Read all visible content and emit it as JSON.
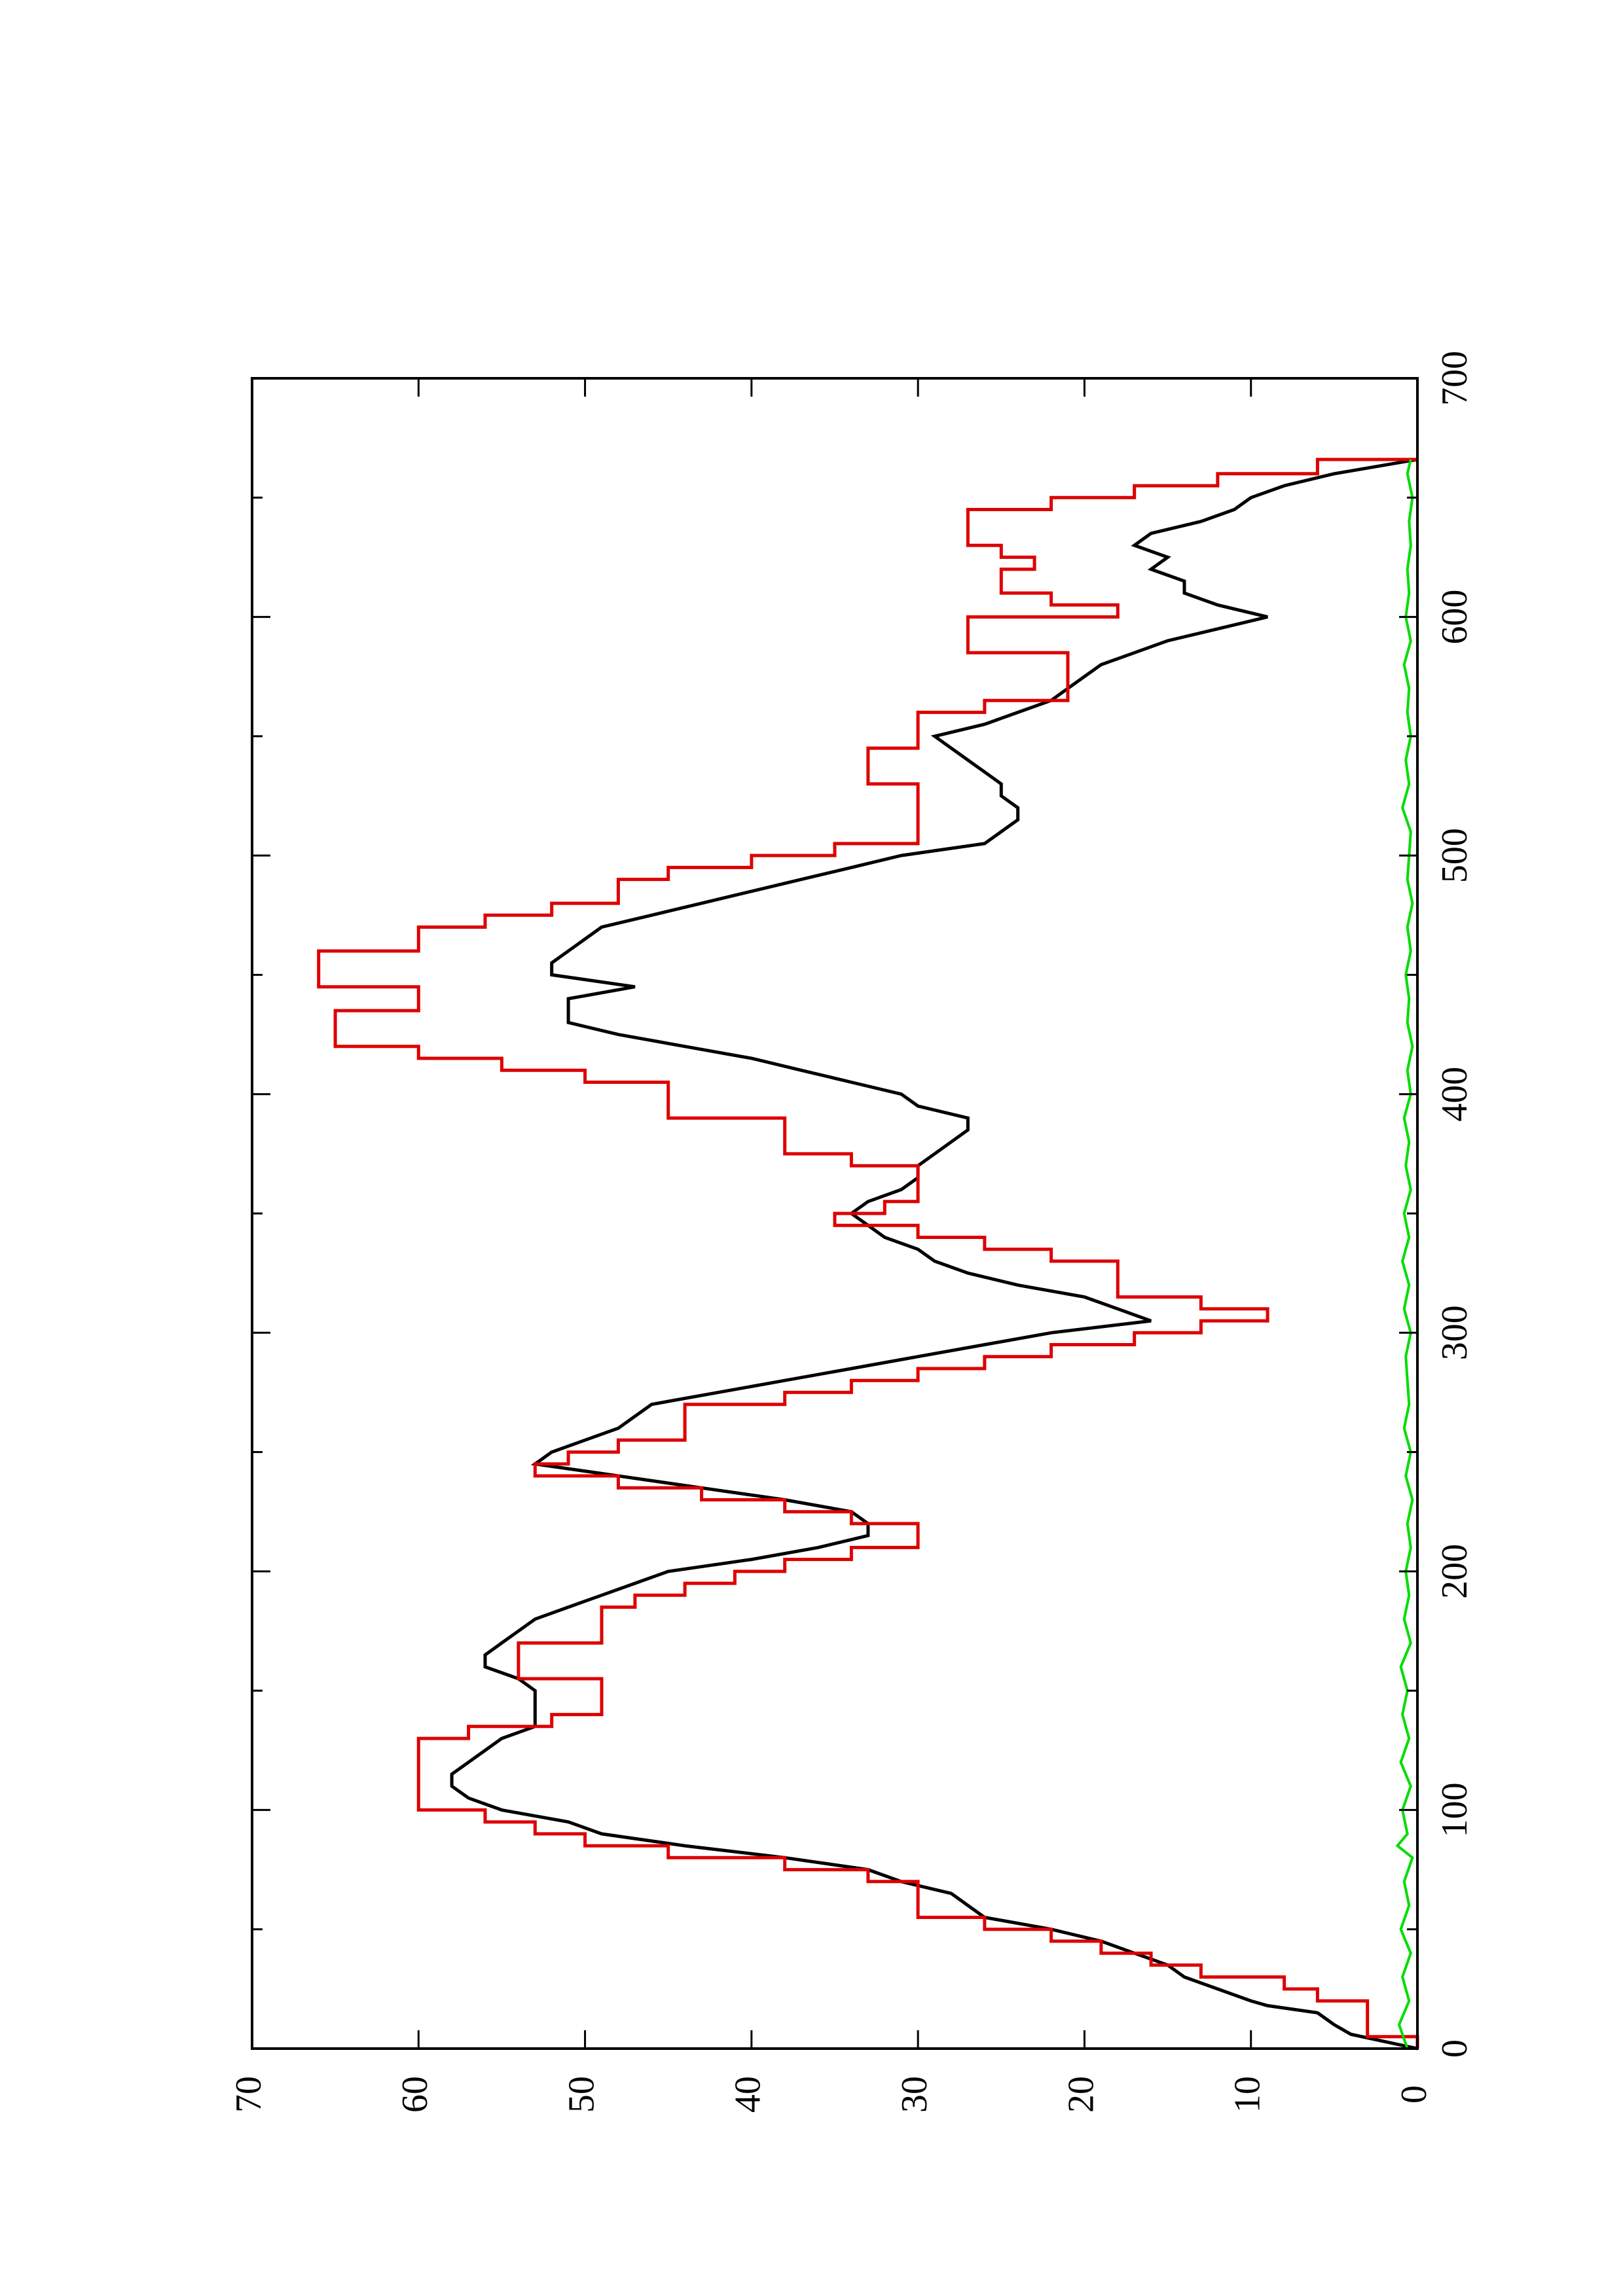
{
  "chart_data": {
    "type": "line",
    "title": "",
    "xlabel": "",
    "ylabel": "",
    "xlim": [
      0,
      700
    ],
    "ylim": [
      0,
      70
    ],
    "x_ticks": [
      0,
      100,
      200,
      300,
      400,
      500,
      600,
      700
    ],
    "x_minor_ticks": [
      50,
      150,
      250,
      350,
      450,
      550,
      650
    ],
    "y_ticks": [
      0,
      10,
      20,
      30,
      40,
      50,
      60,
      70
    ],
    "grid": false,
    "legend": "none",
    "orientation": "rotated 90 degrees counter-clockwise",
    "colors": {
      "black_series": "#000000",
      "red_series": "#dd0000",
      "green_series": "#00dd00"
    },
    "series": [
      {
        "color": "#000000",
        "style": "line",
        "points": [
          [
            0,
            0
          ],
          [
            3,
            2
          ],
          [
            6,
            4
          ],
          [
            10,
            5
          ],
          [
            15,
            6
          ],
          [
            18,
            9
          ],
          [
            20,
            10
          ],
          [
            25,
            12
          ],
          [
            30,
            14
          ],
          [
            35,
            15
          ],
          [
            40,
            17
          ],
          [
            45,
            19
          ],
          [
            50,
            22
          ],
          [
            55,
            26
          ],
          [
            60,
            27
          ],
          [
            65,
            28
          ],
          [
            70,
            31
          ],
          [
            75,
            33
          ],
          [
            80,
            38
          ],
          [
            85,
            44
          ],
          [
            90,
            49
          ],
          [
            95,
            51
          ],
          [
            100,
            55
          ],
          [
            105,
            57
          ],
          [
            110,
            58
          ],
          [
            115,
            58
          ],
          [
            120,
            57
          ],
          [
            125,
            56
          ],
          [
            130,
            55
          ],
          [
            135,
            53
          ],
          [
            140,
            53
          ],
          [
            145,
            53
          ],
          [
            150,
            53
          ],
          [
            155,
            54
          ],
          [
            160,
            56
          ],
          [
            165,
            56
          ],
          [
            170,
            55
          ],
          [
            175,
            54
          ],
          [
            180,
            53
          ],
          [
            185,
            51
          ],
          [
            190,
            49
          ],
          [
            195,
            47
          ],
          [
            200,
            45
          ],
          [
            205,
            40
          ],
          [
            210,
            36
          ],
          [
            215,
            33
          ],
          [
            220,
            33
          ],
          [
            225,
            34
          ],
          [
            230,
            38
          ],
          [
            235,
            43
          ],
          [
            240,
            48
          ],
          [
            245,
            53
          ],
          [
            250,
            52
          ],
          [
            255,
            50
          ],
          [
            260,
            48
          ],
          [
            265,
            47
          ],
          [
            270,
            46
          ],
          [
            275,
            42
          ],
          [
            280,
            38
          ],
          [
            285,
            34
          ],
          [
            290,
            30
          ],
          [
            295,
            26
          ],
          [
            300,
            22
          ],
          [
            305,
            16
          ],
          [
            310,
            18
          ],
          [
            315,
            20
          ],
          [
            320,
            24
          ],
          [
            325,
            27
          ],
          [
            330,
            29
          ],
          [
            335,
            30
          ],
          [
            340,
            32
          ],
          [
            345,
            33
          ],
          [
            350,
            34
          ],
          [
            355,
            33
          ],
          [
            360,
            31
          ],
          [
            365,
            30
          ],
          [
            370,
            30
          ],
          [
            375,
            29
          ],
          [
            380,
            28
          ],
          [
            385,
            27
          ],
          [
            390,
            27
          ],
          [
            395,
            30
          ],
          [
            400,
            31
          ],
          [
            405,
            34
          ],
          [
            410,
            37
          ],
          [
            415,
            40
          ],
          [
            420,
            44
          ],
          [
            425,
            48
          ],
          [
            430,
            51
          ],
          [
            435,
            51
          ],
          [
            440,
            51
          ],
          [
            445,
            47
          ],
          [
            450,
            52
          ],
          [
            455,
            52
          ],
          [
            460,
            51
          ],
          [
            465,
            50
          ],
          [
            470,
            49
          ],
          [
            475,
            46
          ],
          [
            480,
            43
          ],
          [
            485,
            40
          ],
          [
            490,
            37
          ],
          [
            495,
            34
          ],
          [
            500,
            31
          ],
          [
            505,
            26
          ],
          [
            510,
            25
          ],
          [
            515,
            24
          ],
          [
            520,
            24
          ],
          [
            525,
            25
          ],
          [
            530,
            25
          ],
          [
            535,
            26
          ],
          [
            540,
            27
          ],
          [
            545,
            28
          ],
          [
            550,
            29
          ],
          [
            555,
            26
          ],
          [
            560,
            24
          ],
          [
            565,
            22
          ],
          [
            570,
            21
          ],
          [
            575,
            20
          ],
          [
            580,
            19
          ],
          [
            585,
            17
          ],
          [
            590,
            15
          ],
          [
            595,
            12
          ],
          [
            600,
            9
          ],
          [
            605,
            12
          ],
          [
            610,
            14
          ],
          [
            615,
            14
          ],
          [
            620,
            16
          ],
          [
            625,
            15
          ],
          [
            630,
            17
          ],
          [
            635,
            16
          ],
          [
            640,
            13
          ],
          [
            645,
            11
          ],
          [
            650,
            10
          ],
          [
            655,
            8
          ],
          [
            660,
            5
          ],
          [
            666,
            0
          ]
        ]
      },
      {
        "color": "#dd0000",
        "style": "step",
        "points": [
          [
            0,
            0
          ],
          [
            5,
            3
          ],
          [
            15,
            3
          ],
          [
            20,
            6
          ],
          [
            25,
            8
          ],
          [
            30,
            13
          ],
          [
            35,
            16
          ],
          [
            40,
            19
          ],
          [
            45,
            22
          ],
          [
            50,
            26
          ],
          [
            55,
            30
          ],
          [
            65,
            30
          ],
          [
            70,
            33
          ],
          [
            75,
            38
          ],
          [
            80,
            45
          ],
          [
            85,
            50
          ],
          [
            90,
            53
          ],
          [
            95,
            56
          ],
          [
            100,
            60
          ],
          [
            120,
            60
          ],
          [
            130,
            57
          ],
          [
            135,
            52
          ],
          [
            140,
            49
          ],
          [
            150,
            49
          ],
          [
            155,
            54
          ],
          [
            165,
            54
          ],
          [
            170,
            49
          ],
          [
            180,
            49
          ],
          [
            185,
            47
          ],
          [
            190,
            44
          ],
          [
            195,
            41
          ],
          [
            200,
            38
          ],
          [
            205,
            34
          ],
          [
            210,
            30
          ],
          [
            215,
            30
          ],
          [
            220,
            34
          ],
          [
            225,
            38
          ],
          [
            230,
            43
          ],
          [
            235,
            48
          ],
          [
            240,
            53
          ],
          [
            245,
            51
          ],
          [
            250,
            48
          ],
          [
            255,
            44
          ],
          [
            265,
            44
          ],
          [
            270,
            38
          ],
          [
            275,
            34
          ],
          [
            280,
            30
          ],
          [
            285,
            26
          ],
          [
            290,
            22
          ],
          [
            295,
            17
          ],
          [
            300,
            13
          ],
          [
            305,
            9
          ],
          [
            310,
            13
          ],
          [
            315,
            18
          ],
          [
            325,
            18
          ],
          [
            330,
            22
          ],
          [
            335,
            26
          ],
          [
            340,
            30
          ],
          [
            345,
            35
          ],
          [
            350,
            32
          ],
          [
            355,
            30
          ],
          [
            360,
            30
          ],
          [
            365,
            30
          ],
          [
            370,
            34
          ],
          [
            375,
            38
          ],
          [
            385,
            38
          ],
          [
            390,
            45
          ],
          [
            400,
            45
          ],
          [
            405,
            50
          ],
          [
            410,
            55
          ],
          [
            415,
            60
          ],
          [
            420,
            65
          ],
          [
            430,
            65
          ],
          [
            435,
            60
          ],
          [
            440,
            60
          ],
          [
            445,
            66
          ],
          [
            455,
            66
          ],
          [
            460,
            60
          ],
          [
            465,
            60
          ],
          [
            470,
            56
          ],
          [
            475,
            52
          ],
          [
            480,
            48
          ],
          [
            490,
            45
          ],
          [
            495,
            40
          ],
          [
            500,
            35
          ],
          [
            505,
            30
          ],
          [
            525,
            30
          ],
          [
            530,
            33
          ],
          [
            540,
            33
          ],
          [
            545,
            30
          ],
          [
            555,
            30
          ],
          [
            560,
            26
          ],
          [
            565,
            21
          ],
          [
            580,
            21
          ],
          [
            585,
            27
          ],
          [
            595,
            27
          ],
          [
            600,
            18
          ],
          [
            605,
            22
          ],
          [
            610,
            25
          ],
          [
            615,
            25
          ],
          [
            620,
            23
          ],
          [
            625,
            25
          ],
          [
            630,
            27
          ],
          [
            640,
            27
          ],
          [
            645,
            22
          ],
          [
            650,
            17
          ],
          [
            655,
            12
          ],
          [
            660,
            6
          ],
          [
            666,
            0
          ]
        ]
      },
      {
        "color": "#00dd00",
        "style": "noise",
        "points": [
          [
            0,
            0.6
          ],
          [
            10,
            1.1
          ],
          [
            20,
            0.5
          ],
          [
            30,
            0.9
          ],
          [
            40,
            0.4
          ],
          [
            50,
            1.0
          ],
          [
            60,
            0.5
          ],
          [
            70,
            0.8
          ],
          [
            80,
            0.3
          ],
          [
            85,
            1.2
          ],
          [
            90,
            0.6
          ],
          [
            100,
            0.9
          ],
          [
            110,
            0.4
          ],
          [
            120,
            1.0
          ],
          [
            130,
            0.5
          ],
          [
            140,
            0.9
          ],
          [
            150,
            0.6
          ],
          [
            160,
            1.0
          ],
          [
            170,
            0.4
          ],
          [
            180,
            0.8
          ],
          [
            190,
            0.5
          ],
          [
            200,
            0.7
          ],
          [
            210,
            0.4
          ],
          [
            220,
            0.6
          ],
          [
            230,
            0.3
          ],
          [
            240,
            0.7
          ],
          [
            250,
            0.4
          ],
          [
            260,
            0.8
          ],
          [
            270,
            0.5
          ],
          [
            280,
            0.6
          ],
          [
            290,
            0.7
          ],
          [
            300,
            0.4
          ],
          [
            310,
            0.8
          ],
          [
            320,
            0.5
          ],
          [
            330,
            0.9
          ],
          [
            340,
            0.5
          ],
          [
            350,
            0.8
          ],
          [
            360,
            0.4
          ],
          [
            370,
            0.7
          ],
          [
            380,
            0.5
          ],
          [
            390,
            0.8
          ],
          [
            400,
            0.4
          ],
          [
            410,
            0.6
          ],
          [
            420,
            0.3
          ],
          [
            430,
            0.6
          ],
          [
            440,
            0.5
          ],
          [
            450,
            0.7
          ],
          [
            460,
            0.4
          ],
          [
            470,
            0.6
          ],
          [
            480,
            0.3
          ],
          [
            490,
            0.6
          ],
          [
            500,
            0.5
          ],
          [
            510,
            0.4
          ],
          [
            520,
            0.9
          ],
          [
            530,
            0.5
          ],
          [
            540,
            0.7
          ],
          [
            550,
            0.4
          ],
          [
            560,
            0.6
          ],
          [
            570,
            0.5
          ],
          [
            580,
            0.8
          ],
          [
            590,
            0.4
          ],
          [
            600,
            0.7
          ],
          [
            610,
            0.5
          ],
          [
            620,
            0.6
          ],
          [
            630,
            0.4
          ],
          [
            640,
            0.5
          ],
          [
            650,
            0.3
          ],
          [
            660,
            0.6
          ],
          [
            666,
            0.4
          ]
        ]
      }
    ]
  }
}
